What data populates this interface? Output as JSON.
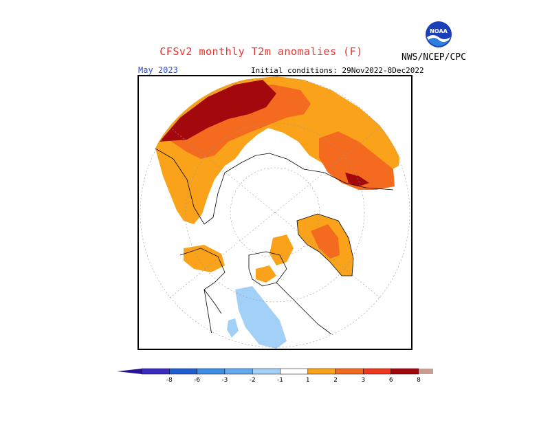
{
  "header": {
    "title": "CFSv2 monthly T2m anomalies (F)",
    "agency": "NWS/NCEP/CPC",
    "logo_text": "NOAA",
    "valid_month": "May 2023",
    "initial_conditions": "Initial conditions: 29Nov2022-8Dec2022"
  },
  "legend": {
    "levels": [
      {
        "label": "-8",
        "color": "#3b2bbf"
      },
      {
        "label": "-6",
        "color": "#1f5dd0"
      },
      {
        "label": "-3",
        "color": "#3c8ee6"
      },
      {
        "label": "-2",
        "color": "#63aaf0"
      },
      {
        "label": "-1",
        "color": "#a3d0f7"
      },
      {
        "label": "1",
        "color": "#ffffff"
      },
      {
        "label": "2",
        "color": "#f9a21a"
      },
      {
        "label": "3",
        "color": "#f46a1e"
      },
      {
        "label": "6",
        "color": "#f0391c"
      },
      {
        "label": "8",
        "color": "#a3080c"
      }
    ],
    "low_end_color": "#2a1296",
    "high_end_colors": [
      "#c99c93",
      "#7d4a3e"
    ]
  },
  "colors": {
    "title": "#e8322f",
    "valid_month": "#2a4fd6",
    "anomaly_1_2": "#f9a21a",
    "anomaly_2_3": "#f46a1e",
    "anomaly_3_6": "#f0391c",
    "anomaly_6_8": "#a3080c",
    "anomaly_neg_1_2": "#a3d0f7",
    "land_outline": "#000000"
  },
  "map": {
    "projection": "north-polar-stereographic",
    "region": "Northern Hemisphere"
  }
}
